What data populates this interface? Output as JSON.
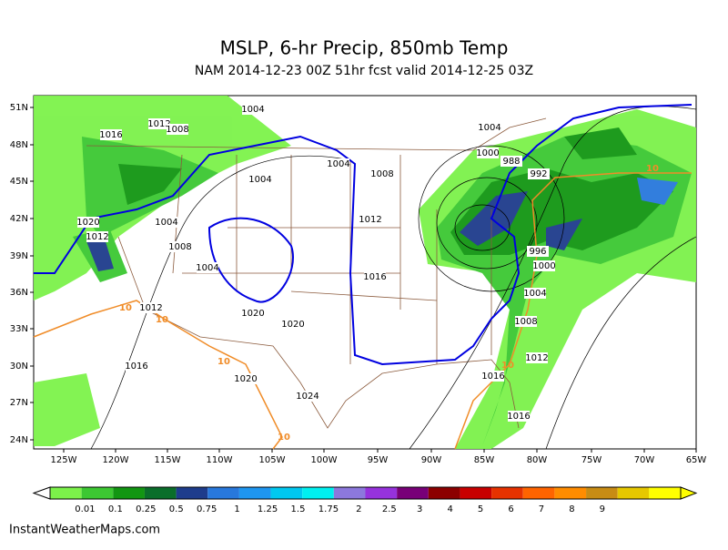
{
  "header": {
    "title": "MSLP, 6-hr Precip, 850mb Temp",
    "subtitle": "NAM 2014-12-23 00Z 51hr fcst valid 2014-12-25 03Z"
  },
  "map": {
    "lat_labels": [
      "51N",
      "48N",
      "45N",
      "42N",
      "39N",
      "36N",
      "33N",
      "30N",
      "27N",
      "24N"
    ],
    "lon_labels": [
      "125W",
      "120W",
      "115W",
      "110W",
      "105W",
      "100W",
      "95W",
      "90W",
      "85W",
      "80W",
      "75W",
      "70W",
      "65W"
    ],
    "isobar_labels": [
      "1004",
      "1012",
      "1016",
      "1008",
      "1004",
      "1000",
      "1004",
      "1008",
      "1004",
      "988",
      "992",
      "1012",
      "1020",
      "1012",
      "1004",
      "1008",
      "1004",
      "1016",
      "996",
      "1000",
      "1004",
      "1008",
      "1012",
      "1016",
      "1016",
      "1020",
      "1020",
      "1020",
      "1024",
      "1016",
      "1012"
    ],
    "temp_labels": [
      "10",
      "10",
      "10",
      "10",
      "10",
      "10"
    ]
  },
  "colorbar": {
    "labels": [
      "0.01",
      "0.1",
      "0.25",
      "0.5",
      "0.75",
      "1",
      "1.25",
      "1.5",
      "1.75",
      "2",
      "2.5",
      "3",
      "4",
      "5",
      "6",
      "7",
      "8",
      "9"
    ],
    "colors": [
      "#7cf24a",
      "#3cc832",
      "#129612",
      "#0a6e2a",
      "#1e3c8c",
      "#2878dc",
      "#1e96f0",
      "#00c8f0",
      "#00f0f0",
      "#8c78dc",
      "#9632dc",
      "#780078",
      "#8c0000",
      "#c80000",
      "#e63200",
      "#ff6400",
      "#ff8c00",
      "#c88c14",
      "#e6c800",
      "#ffff00"
    ]
  },
  "footer": {
    "credit": "InstantWeatherMaps.com"
  }
}
